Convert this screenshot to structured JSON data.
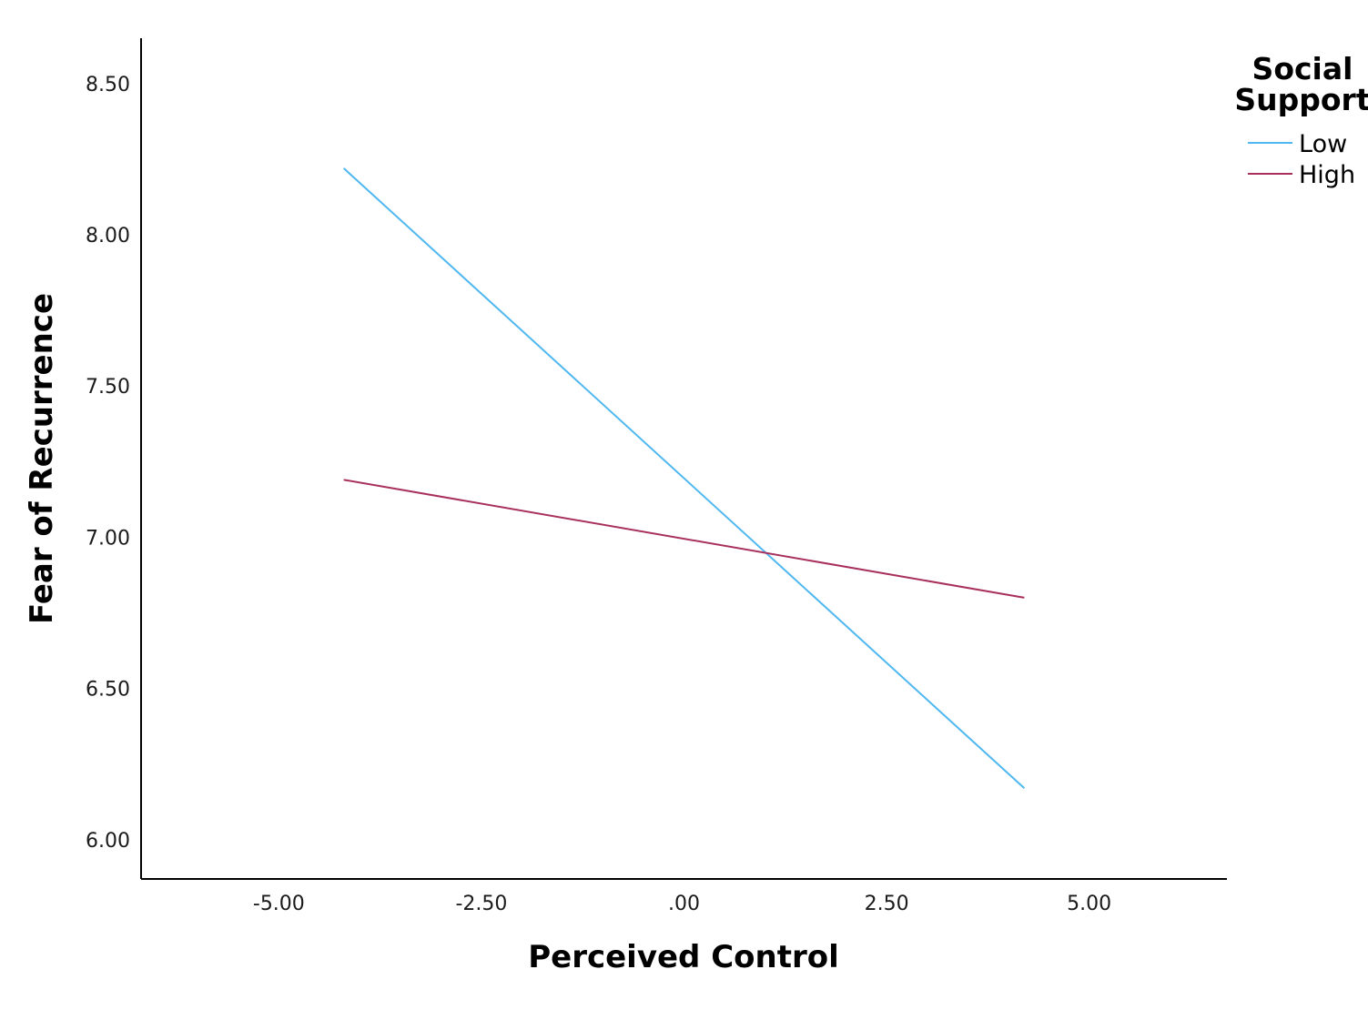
{
  "chart_data": {
    "type": "line",
    "xlabel": "Perceived Control",
    "ylabel": "Fear of Recurrence",
    "xlim": [
      -6.7,
      6.7
    ],
    "ylim": [
      5.87,
      8.65
    ],
    "x_ticks": [
      -5,
      -2.5,
      0,
      2.5,
      5
    ],
    "x_tick_labels": [
      "-5.00",
      "-2.50",
      ".00",
      "2.50",
      "5.00"
    ],
    "y_ticks": [
      6,
      6.5,
      7,
      7.5,
      8,
      8.5
    ],
    "y_tick_labels": [
      "6.00",
      "6.50",
      "7.00",
      "7.50",
      "8.00",
      "8.50"
    ],
    "grid": false,
    "legend": {
      "title_lines": [
        "Social",
        "Support"
      ],
      "position": "top-right"
    },
    "series": [
      {
        "name": "Low",
        "color": "#4fb8f0",
        "x": [
          -4.2,
          4.2
        ],
        "y": [
          8.22,
          6.17
        ]
      },
      {
        "name": "High",
        "color": "#a8305c",
        "x": [
          -4.2,
          4.2
        ],
        "y": [
          7.19,
          6.8
        ]
      }
    ]
  }
}
